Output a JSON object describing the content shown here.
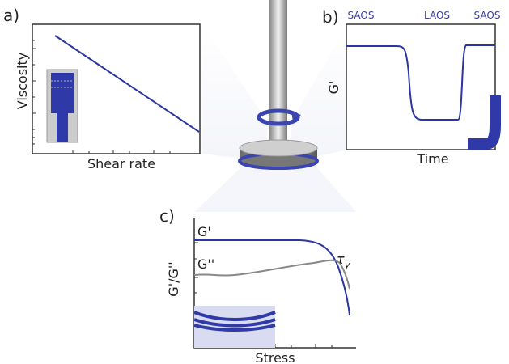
{
  "panel_a": {
    "label": "a)",
    "y_axis": "Viscosity",
    "x_axis": "Shear rate"
  },
  "panel_b": {
    "label": "b)",
    "y_axis": "G'",
    "x_axis": "Time",
    "regions": [
      "SAOS",
      "LAOS",
      "SAOS"
    ]
  },
  "panel_c": {
    "label": "c)",
    "y_axis": "G'/G''",
    "x_axis": "Stress",
    "curves": [
      "G'",
      "G''"
    ],
    "tau": {
      "symbol": "τ",
      "subscript": "y"
    }
  }
}
